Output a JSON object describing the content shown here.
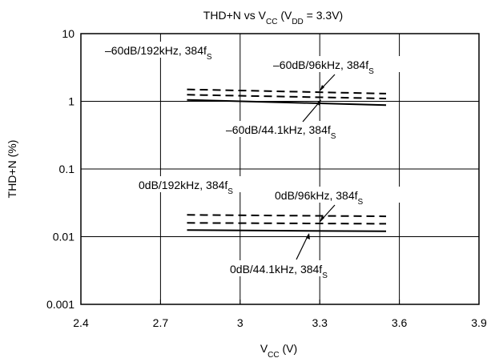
{
  "chart_data": {
    "type": "line",
    "title": {
      "main": "THD+N vs V",
      "sub1": "CC",
      "mid": " (V",
      "sub2": "DD",
      "end": " = 3.3V)"
    },
    "xlabel": {
      "main": "V",
      "sub": "CC",
      "end": " (V)"
    },
    "ylabel": "THD+N (%)",
    "x_scale": "linear",
    "y_scale": "log",
    "xlim": [
      2.4,
      3.9
    ],
    "ylim": [
      0.001,
      10
    ],
    "x_ticks": [
      "2.4",
      "2.7",
      "3",
      "3.3",
      "3.6",
      "3.9"
    ],
    "y_ticks": [
      "0.001",
      "0.01",
      "0.1",
      "1",
      "10"
    ],
    "grid": true,
    "series": [
      {
        "name": "-60dB/192kHz, 384fS",
        "style": "dashed",
        "x": [
          2.8,
          3.55
        ],
        "y": [
          1.5,
          1.3
        ]
      },
      {
        "name": "-60dB/96kHz, 384fS",
        "style": "dashed",
        "x": [
          2.8,
          3.55
        ],
        "y": [
          1.25,
          1.1
        ]
      },
      {
        "name": "-60dB/44.1kHz, 384fS",
        "style": "solid",
        "x": [
          2.8,
          3.55
        ],
        "y": [
          1.05,
          0.88
        ]
      },
      {
        "name": "0dB/192kHz, 384fS",
        "style": "dashed",
        "x": [
          2.8,
          3.55
        ],
        "y": [
          0.021,
          0.02
        ]
      },
      {
        "name": "0dB/96kHz, 384fS",
        "style": "dashed",
        "x": [
          2.8,
          3.55
        ],
        "y": [
          0.016,
          0.0155
        ]
      },
      {
        "name": "0dB/44.1kHz, 384fS",
        "style": "solid",
        "x": [
          2.8,
          3.55
        ],
        "y": [
          0.0125,
          0.012
        ]
      }
    ],
    "annotations": [
      {
        "text": "–60dB/192kHz, 384f",
        "sub": "S"
      },
      {
        "text": "–60dB/96kHz, 384f",
        "sub": "S"
      },
      {
        "text": "–60dB/44.1kHz, 384f",
        "sub": "S"
      },
      {
        "text": "0dB/192kHz, 384f",
        "sub": "S"
      },
      {
        "text": "0dB/96kHz, 384f",
        "sub": "S"
      },
      {
        "text": "0dB/44.1kHz, 384f",
        "sub": "S"
      }
    ]
  }
}
